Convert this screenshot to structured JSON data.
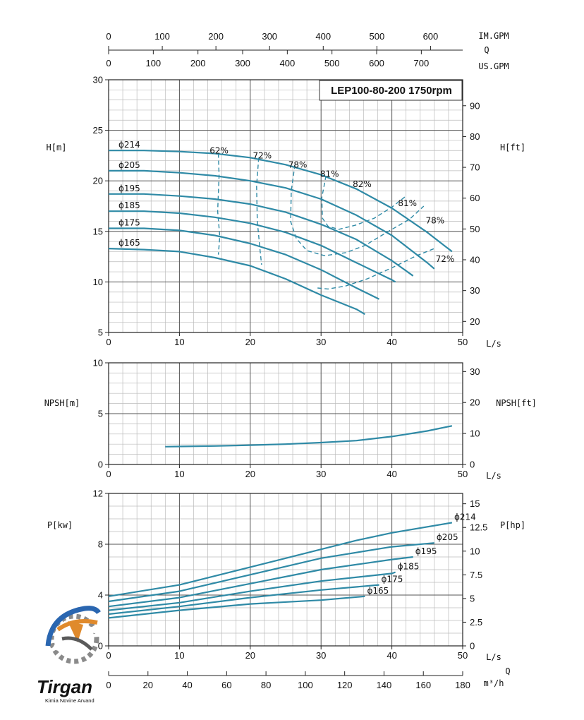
{
  "title": "LEP100-80-200 1750rpm",
  "colors": {
    "curve": "#2f8aa6",
    "grid_major": "#555555",
    "grid_minor": "#bbbbbb"
  },
  "top_axes": {
    "im_gpm": {
      "label": "IM.GPM",
      "ticks": [
        "0",
        "100",
        "200",
        "300",
        "400",
        "500",
        "600"
      ]
    },
    "q_label": "Q",
    "us_gpm": {
      "label": "US.GPM",
      "ticks": [
        "0",
        "100",
        "200",
        "300",
        "400",
        "500",
        "600",
        "700"
      ]
    }
  },
  "flow_axis": {
    "label": "L/s",
    "ticks": [
      "0",
      "10",
      "20",
      "30",
      "40",
      "50"
    ]
  },
  "m3h_axis": {
    "label": "m³/h",
    "q_label": "Q",
    "ticks": [
      "0",
      "20",
      "40",
      "60",
      "80",
      "100",
      "120",
      "140",
      "160",
      "180"
    ]
  },
  "logo": {
    "brand": "Tirgan",
    "tagline": "Kimia Novine Arvand"
  },
  "chart_data": [
    {
      "type": "line",
      "name": "head",
      "xlabel": "L/s",
      "ylabel": "H[m]",
      "ylabel_right": "H[ft]",
      "xlim": [
        0,
        50
      ],
      "ylim": [
        5,
        30
      ],
      "yticks": [
        "5",
        "10",
        "15",
        "20",
        "25",
        "30"
      ],
      "yticks_right": [
        "20",
        "30",
        "40",
        "50",
        "60",
        "70",
        "80",
        "90"
      ],
      "series": [
        {
          "name": "ϕ214",
          "x": [
            0,
            5,
            10,
            15,
            20,
            25,
            30,
            35,
            40,
            45,
            48.5
          ],
          "y": [
            23,
            23,
            22.9,
            22.7,
            22.3,
            21.6,
            20.6,
            19.2,
            17.3,
            14.9,
            13.0
          ]
        },
        {
          "name": "ϕ205",
          "x": [
            0,
            5,
            10,
            15,
            20,
            25,
            30,
            35,
            40,
            45,
            46
          ],
          "y": [
            21,
            21,
            20.8,
            20.5,
            20.0,
            19.3,
            18.2,
            16.6,
            14.6,
            11.9,
            11.3
          ]
        },
        {
          "name": "ϕ195",
          "x": [
            0,
            5,
            10,
            15,
            20,
            25,
            30,
            35,
            40,
            43
          ],
          "y": [
            18.7,
            18.7,
            18.5,
            18.2,
            17.7,
            16.9,
            15.7,
            14.2,
            12.1,
            10.6
          ]
        },
        {
          "name": "ϕ185",
          "x": [
            0,
            5,
            10,
            15,
            20,
            25,
            30,
            35,
            40,
            40.5
          ],
          "y": [
            17,
            17,
            16.8,
            16.4,
            15.8,
            14.9,
            13.6,
            11.9,
            10.2,
            10.0
          ]
        },
        {
          "name": "ϕ175",
          "x": [
            0,
            5,
            10,
            15,
            20,
            25,
            30,
            35,
            38.2
          ],
          "y": [
            15.3,
            15.3,
            15.1,
            14.6,
            13.8,
            12.7,
            11.2,
            9.4,
            8.3
          ]
        },
        {
          "name": "ϕ165",
          "x": [
            0,
            5,
            10,
            15,
            20,
            25,
            30,
            35,
            36.2
          ],
          "y": [
            13.3,
            13.2,
            13.0,
            12.4,
            11.6,
            10.3,
            8.7,
            7.3,
            6.8
          ]
        }
      ],
      "efficiency_curves": [
        {
          "label": "62%",
          "x": [
            15.5,
            15.6,
            15.4,
            15.7,
            15.5
          ],
          "y": [
            22.7,
            20.5,
            17.0,
            14.5,
            12.7
          ]
        },
        {
          "label": "72%",
          "x": [
            21.2,
            20.9,
            21.0,
            21.4,
            21.6
          ],
          "y": [
            22.3,
            19.5,
            16.0,
            13.0,
            11.7
          ]
        },
        {
          "label": "78%",
          "x": [
            26.3,
            25.8,
            25.7,
            26.5,
            28.0,
            30.5,
            33.5,
            36.2,
            39.5,
            42.5,
            44.5
          ],
          "y": [
            21.6,
            19.0,
            16.0,
            14.3,
            13.1,
            12.6,
            12.9,
            13.6,
            15.0,
            16.2,
            17.5
          ]
        },
        {
          "label": "81%",
          "x": [
            30.7,
            30.1,
            30.2,
            31.0,
            32.5,
            34.8,
            37.5,
            40.0,
            42.0
          ],
          "y": [
            20.5,
            18.3,
            16.3,
            15.5,
            15.2,
            15.6,
            16.3,
            17.4,
            18.5
          ]
        },
        {
          "label": "72%",
          "x": [
            29.5,
            31.0,
            33.5,
            36.5,
            40.0,
            43.5,
            46.0
          ],
          "y": [
            9.4,
            9.3,
            9.6,
            10.3,
            11.4,
            12.6,
            13.3
          ]
        }
      ],
      "efficiency_labels": [
        "62%",
        "72%",
        "78%",
        "81%",
        "82%",
        "81%",
        "78%",
        "72%"
      ]
    },
    {
      "type": "line",
      "name": "npsh",
      "xlabel": "L/s",
      "ylabel": "NPSH[m]",
      "ylabel_right": "NPSH[ft]",
      "xlim": [
        0,
        50
      ],
      "ylim": [
        0,
        10
      ],
      "yticks": [
        "0",
        "5",
        "10"
      ],
      "yticks_right": [
        "0",
        "10",
        "20",
        "30"
      ],
      "series": [
        {
          "name": "NPSH",
          "x": [
            8,
            15,
            20,
            25,
            30,
            35,
            40,
            45,
            48.5
          ],
          "y": [
            1.75,
            1.82,
            1.9,
            2.0,
            2.15,
            2.35,
            2.75,
            3.3,
            3.8
          ]
        }
      ]
    },
    {
      "type": "line",
      "name": "power",
      "xlabel": "L/s",
      "ylabel": "P[kw]",
      "ylabel_right": "P[hp]",
      "xlim": [
        0,
        50
      ],
      "ylim": [
        0,
        12
      ],
      "yticks": [
        "0",
        "4",
        "8",
        "12"
      ],
      "yticks_right": [
        "0",
        "2.5",
        "5",
        "7.5",
        "10",
        "12.5",
        "15"
      ],
      "series": [
        {
          "name": "ϕ214",
          "x": [
            0,
            10,
            20,
            30,
            35,
            40,
            48.5
          ],
          "y": [
            3.9,
            4.8,
            6.2,
            7.6,
            8.3,
            8.9,
            9.7
          ]
        },
        {
          "name": "ϕ205",
          "x": [
            0,
            10,
            20,
            30,
            40,
            46
          ],
          "y": [
            3.5,
            4.3,
            5.6,
            6.9,
            7.8,
            8.1
          ]
        },
        {
          "name": "ϕ195",
          "x": [
            0,
            10,
            20,
            30,
            40,
            43
          ],
          "y": [
            3.1,
            3.8,
            4.9,
            6.0,
            6.8,
            7.0
          ]
        },
        {
          "name": "ϕ185",
          "x": [
            0,
            10,
            20,
            30,
            40,
            40.5
          ],
          "y": [
            2.8,
            3.4,
            4.3,
            5.1,
            5.7,
            5.8
          ]
        },
        {
          "name": "ϕ175",
          "x": [
            0,
            10,
            20,
            30,
            38.2
          ],
          "y": [
            2.5,
            3.1,
            3.8,
            4.4,
            4.8
          ]
        },
        {
          "name": "ϕ165",
          "x": [
            0,
            10,
            20,
            30,
            36.2
          ],
          "y": [
            2.2,
            2.8,
            3.3,
            3.6,
            3.9
          ]
        }
      ]
    }
  ]
}
